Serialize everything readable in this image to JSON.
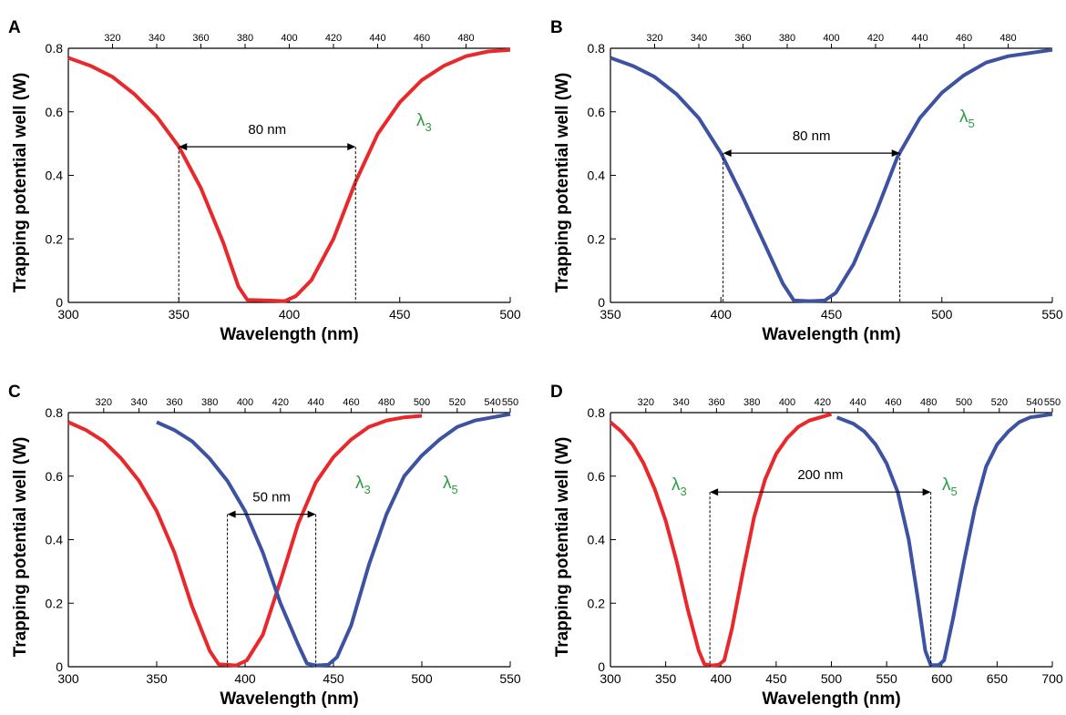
{
  "colors": {
    "red_series": "#e8282b",
    "blue_series": "#3d52a1",
    "lambda_label": "#2a9d3f"
  },
  "chart_data": [
    {
      "panel": "A",
      "type": "line",
      "xlabel": "Wavelength (nm)",
      "ylabel": "Trapping potential well (W)",
      "xlim": [
        300,
        500
      ],
      "ylim": [
        0,
        0.8
      ],
      "xticks": [
        300,
        350,
        400,
        450,
        500
      ],
      "yticks": [
        0,
        0.2,
        0.4,
        0.6,
        0.8
      ],
      "top_axis": {
        "xlim": [
          300,
          500
        ],
        "ticks": [
          320,
          340,
          360,
          380,
          400,
          420,
          440,
          460,
          480
        ]
      },
      "series": [
        {
          "color": "red",
          "label": "λ3",
          "points": [
            [
              300,
              0.77
            ],
            [
              310,
              0.745
            ],
            [
              320,
              0.71
            ],
            [
              330,
              0.655
            ],
            [
              340,
              0.585
            ],
            [
              350,
              0.49
            ],
            [
              360,
              0.36
            ],
            [
              370,
              0.19
            ],
            [
              377,
              0.05
            ],
            [
              381,
              0.008
            ],
            [
              390,
              0.006
            ],
            [
              398,
              0.004
            ],
            [
              403,
              0.02
            ],
            [
              410,
              0.07
            ],
            [
              420,
              0.2
            ],
            [
              430,
              0.38
            ],
            [
              440,
              0.53
            ],
            [
              450,
              0.63
            ],
            [
              460,
              0.7
            ],
            [
              470,
              0.745
            ],
            [
              480,
              0.775
            ],
            [
              490,
              0.79
            ],
            [
              500,
              0.795
            ]
          ]
        }
      ],
      "annotations": [
        {
          "text": "80 nm",
          "x1": 350,
          "x2": 430,
          "y": 0.49
        }
      ]
    },
    {
      "panel": "B",
      "type": "line",
      "xlabel": "Wavelength (nm)",
      "ylabel": "Trapping potential well (W)",
      "xlim": [
        350,
        550
      ],
      "ylim": [
        0,
        0.8
      ],
      "xticks": [
        350,
        400,
        450,
        500,
        550
      ],
      "yticks": [
        0,
        0.2,
        0.4,
        0.6,
        0.8
      ],
      "top_axis": {
        "xlim": [
          300,
          500
        ],
        "ticks": [
          320,
          340,
          360,
          380,
          400,
          420,
          440,
          460,
          480
        ]
      },
      "series": [
        {
          "color": "blue",
          "label": "λ5",
          "points": [
            [
              350,
              0.77
            ],
            [
              360,
              0.745
            ],
            [
              370,
              0.71
            ],
            [
              380,
              0.655
            ],
            [
              390,
              0.58
            ],
            [
              400,
              0.47
            ],
            [
              410,
              0.33
            ],
            [
              420,
              0.18
            ],
            [
              428,
              0.06
            ],
            [
              433,
              0.006
            ],
            [
              440,
              0.004
            ],
            [
              447,
              0.006
            ],
            [
              452,
              0.03
            ],
            [
              460,
              0.12
            ],
            [
              470,
              0.28
            ],
            [
              480,
              0.46
            ],
            [
              490,
              0.58
            ],
            [
              500,
              0.66
            ],
            [
              510,
              0.715
            ],
            [
              520,
              0.755
            ],
            [
              530,
              0.775
            ],
            [
              540,
              0.785
            ],
            [
              550,
              0.795
            ]
          ]
        }
      ],
      "annotations": [
        {
          "text": "80 nm",
          "x1": 401,
          "x2": 481,
          "y": 0.47
        }
      ]
    },
    {
      "panel": "C",
      "type": "line",
      "xlabel": "Wavelength (nm)",
      "ylabel": "Trapping potential well (W)",
      "xlim": [
        300,
        550
      ],
      "ylim": [
        0,
        0.8
      ],
      "xticks": [
        300,
        350,
        400,
        450,
        500,
        550
      ],
      "yticks": [
        0,
        0.2,
        0.4,
        0.6,
        0.8
      ],
      "top_axis": {
        "xlim": [
          300,
          550
        ],
        "ticks": [
          320,
          340,
          360,
          380,
          400,
          420,
          440,
          460,
          480,
          500,
          520,
          540,
          550
        ]
      },
      "series": [
        {
          "color": "red",
          "label": "λ3",
          "points": [
            [
              300,
              0.77
            ],
            [
              310,
              0.745
            ],
            [
              320,
              0.71
            ],
            [
              330,
              0.655
            ],
            [
              340,
              0.585
            ],
            [
              350,
              0.49
            ],
            [
              360,
              0.36
            ],
            [
              370,
              0.19
            ],
            [
              380,
              0.05
            ],
            [
              385,
              0.008
            ],
            [
              395,
              0.004
            ],
            [
              401,
              0.02
            ],
            [
              410,
              0.1
            ],
            [
              420,
              0.27
            ],
            [
              430,
              0.45
            ],
            [
              440,
              0.58
            ],
            [
              450,
              0.66
            ],
            [
              460,
              0.715
            ],
            [
              470,
              0.755
            ],
            [
              480,
              0.775
            ],
            [
              490,
              0.785
            ],
            [
              500,
              0.79
            ]
          ]
        },
        {
          "color": "blue",
          "label": "λ5",
          "points": [
            [
              350,
              0.77
            ],
            [
              360,
              0.745
            ],
            [
              370,
              0.71
            ],
            [
              380,
              0.655
            ],
            [
              390,
              0.585
            ],
            [
              400,
              0.49
            ],
            [
              410,
              0.36
            ],
            [
              420,
              0.2
            ],
            [
              430,
              0.07
            ],
            [
              435,
              0.01
            ],
            [
              440,
              0.004
            ],
            [
              447,
              0.006
            ],
            [
              452,
              0.03
            ],
            [
              460,
              0.13
            ],
            [
              470,
              0.32
            ],
            [
              480,
              0.48
            ],
            [
              490,
              0.6
            ],
            [
              500,
              0.665
            ],
            [
              510,
              0.715
            ],
            [
              520,
              0.755
            ],
            [
              530,
              0.775
            ],
            [
              540,
              0.785
            ],
            [
              550,
              0.795
            ]
          ]
        }
      ],
      "annotations": [
        {
          "text": "50 nm",
          "x1": 390,
          "x2": 440,
          "y": 0.48
        }
      ]
    },
    {
      "panel": "D",
      "type": "line",
      "xlabel": "Wavelength (nm)",
      "ylabel": "Trapping potential well (W)",
      "xlim": [
        300,
        700
      ],
      "ylim": [
        0,
        0.8
      ],
      "xticks": [
        300,
        350,
        400,
        450,
        500,
        550,
        600,
        650,
        700
      ],
      "yticks": [
        0,
        0.2,
        0.4,
        0.6,
        0.8
      ],
      "top_axis": {
        "xlim": [
          300,
          550
        ],
        "ticks": [
          320,
          340,
          360,
          380,
          400,
          420,
          440,
          460,
          480,
          500,
          520,
          540,
          550
        ]
      },
      "series": [
        {
          "color": "red",
          "label": "λ3",
          "points": [
            [
              300,
              0.77
            ],
            [
              310,
              0.74
            ],
            [
              320,
              0.7
            ],
            [
              330,
              0.64
            ],
            [
              340,
              0.56
            ],
            [
              350,
              0.46
            ],
            [
              360,
              0.33
            ],
            [
              370,
              0.18
            ],
            [
              380,
              0.05
            ],
            [
              385,
              0.008
            ],
            [
              392,
              0.004
            ],
            [
              398,
              0.006
            ],
            [
              403,
              0.02
            ],
            [
              410,
              0.12
            ],
            [
              420,
              0.3
            ],
            [
              430,
              0.47
            ],
            [
              440,
              0.59
            ],
            [
              450,
              0.67
            ],
            [
              460,
              0.72
            ],
            [
              470,
              0.755
            ],
            [
              480,
              0.775
            ],
            [
              490,
              0.785
            ],
            [
              500,
              0.795
            ]
          ]
        },
        {
          "color": "blue",
          "label": "λ5",
          "points": [
            [
              505,
              0.785
            ],
            [
              520,
              0.765
            ],
            [
              530,
              0.74
            ],
            [
              540,
              0.7
            ],
            [
              550,
              0.64
            ],
            [
              560,
              0.55
            ],
            [
              570,
              0.4
            ],
            [
              578,
              0.22
            ],
            [
              585,
              0.05
            ],
            [
              590,
              0.005
            ],
            [
              597,
              0.005
            ],
            [
              602,
              0.02
            ],
            [
              610,
              0.15
            ],
            [
              620,
              0.33
            ],
            [
              630,
              0.5
            ],
            [
              640,
              0.63
            ],
            [
              650,
              0.7
            ],
            [
              660,
              0.74
            ],
            [
              670,
              0.77
            ],
            [
              680,
              0.785
            ],
            [
              690,
              0.79
            ],
            [
              700,
              0.795
            ]
          ]
        }
      ],
      "annotations": [
        {
          "text": "200 nm",
          "x1": 390,
          "x2": 590,
          "y": 0.55
        }
      ]
    }
  ]
}
